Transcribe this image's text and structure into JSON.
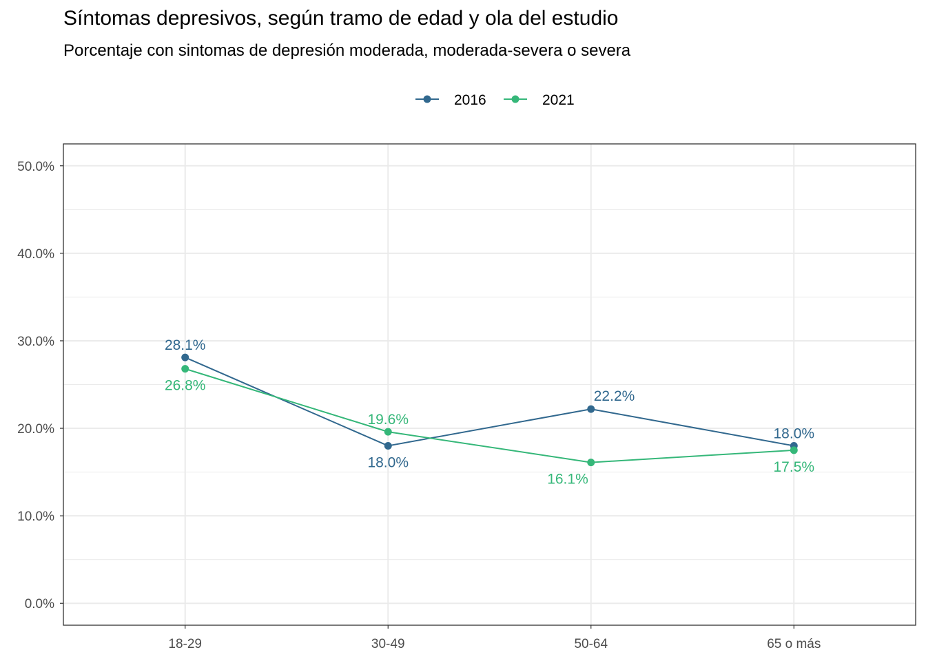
{
  "chart_data": {
    "type": "line",
    "title": "Síntomas depresivos, según tramo de edad y ola del estudio",
    "subtitle": "Porcentaje con sintomas de depresión moderada, moderada-severa o severa",
    "categories": [
      "18-29",
      "30-49",
      "50-64",
      "65 o más"
    ],
    "series": [
      {
        "name": "2016",
        "color": "#31688e",
        "values": [
          28.1,
          18.0,
          22.2,
          18.0
        ],
        "labels": [
          "28.1%",
          "18.0%",
          "22.2%",
          "18.0%"
        ],
        "label_pos": [
          "above",
          "below",
          "above-right",
          "above"
        ]
      },
      {
        "name": "2021",
        "color": "#35b779",
        "values": [
          26.8,
          19.6,
          16.1,
          17.5
        ],
        "labels": [
          "26.8%",
          "19.6%",
          "16.1%",
          "17.5%"
        ],
        "label_pos": [
          "below",
          "above",
          "below-left",
          "below"
        ]
      }
    ],
    "yticks": [
      0,
      10,
      20,
      30,
      40,
      50
    ],
    "ytick_labels": [
      "0.0%",
      "10.0%",
      "20.0%",
      "30.0%",
      "40.0%",
      "50.0%"
    ],
    "ylim": [
      -2.5,
      52.5
    ],
    "grid": true,
    "legend_position": "top"
  }
}
